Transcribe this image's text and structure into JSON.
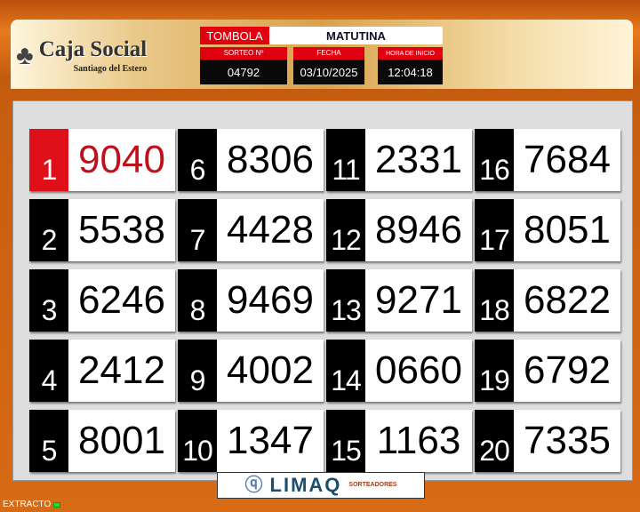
{
  "header": {
    "logo_title": "Caja Social",
    "logo_subtitle": "Santiago del Estero",
    "game_label": "TOMBOLA",
    "session": "MATUTINA",
    "draw_label": "SORTEO Nº",
    "draw_value": "04792",
    "date_label": "FECHA",
    "date_value": "03/10/2025",
    "time_label": "HORA DE INICIO",
    "time_value": "12:04:18"
  },
  "results": [
    {
      "pos": "1",
      "num": "9040"
    },
    {
      "pos": "2",
      "num": "5538"
    },
    {
      "pos": "3",
      "num": "6246"
    },
    {
      "pos": "4",
      "num": "2412"
    },
    {
      "pos": "5",
      "num": "8001"
    },
    {
      "pos": "6",
      "num": "8306"
    },
    {
      "pos": "7",
      "num": "4428"
    },
    {
      "pos": "8",
      "num": "9469"
    },
    {
      "pos": "9",
      "num": "4002"
    },
    {
      "pos": "10",
      "num": "1347"
    },
    {
      "pos": "11",
      "num": "2331"
    },
    {
      "pos": "12",
      "num": "8946"
    },
    {
      "pos": "13",
      "num": "9271"
    },
    {
      "pos": "14",
      "num": "0660"
    },
    {
      "pos": "15",
      "num": "1163"
    },
    {
      "pos": "16",
      "num": "7684"
    },
    {
      "pos": "17",
      "num": "8051"
    },
    {
      "pos": "18",
      "num": "6822"
    },
    {
      "pos": "19",
      "num": "6792"
    },
    {
      "pos": "20",
      "num": "7335"
    }
  ],
  "footer": {
    "brand": "LIMAQ",
    "brand_sub": "SORTEADORES",
    "status": "EXTRACTO"
  },
  "colors": {
    "accent_red": "#e00010",
    "header_orange": "#d76a15",
    "status_led": "#2ed33a"
  }
}
